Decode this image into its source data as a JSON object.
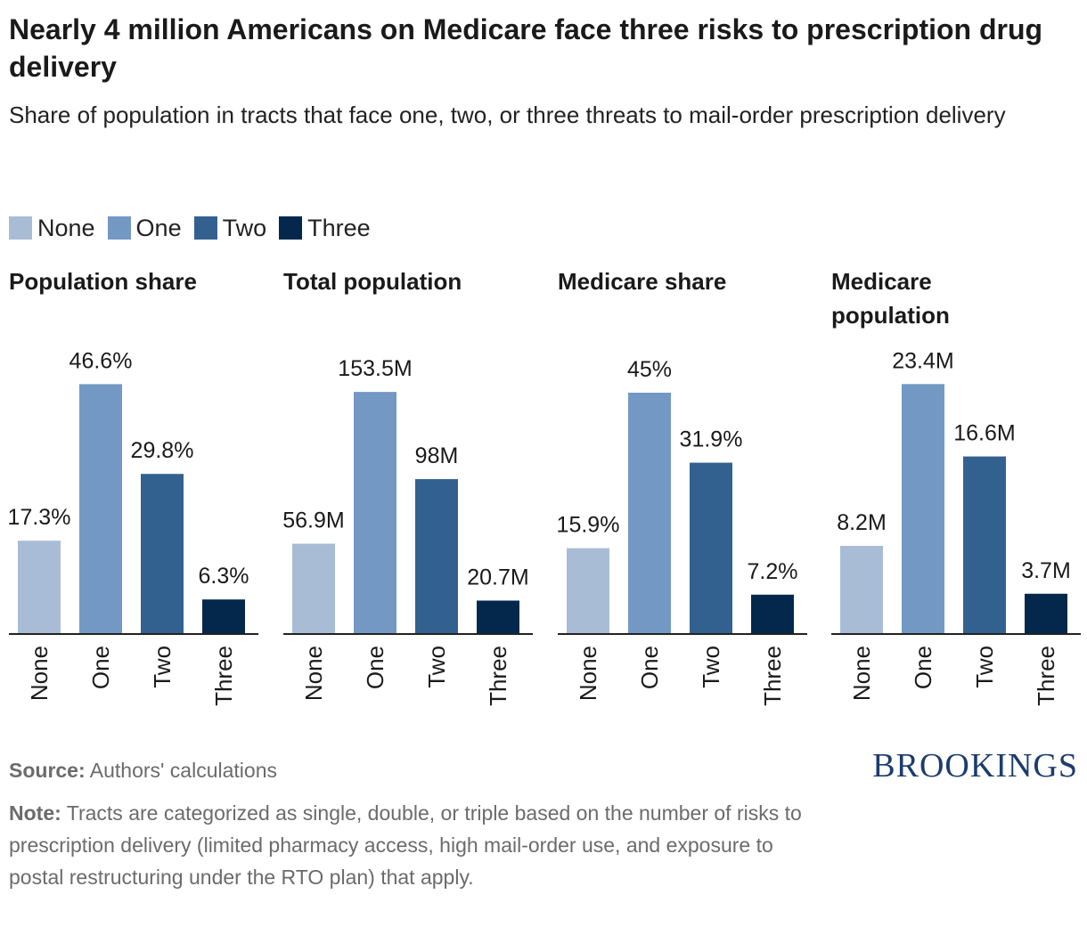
{
  "header": {
    "title": "Nearly 4 million Americans on Medicare face three risks to prescription drug delivery",
    "subtitle": "Share of population in tracts that face one, two, or three threats to mail-order prescription delivery"
  },
  "legend": [
    {
      "label": "None",
      "color": "#a9bcd6"
    },
    {
      "label": "One",
      "color": "#7398c4"
    },
    {
      "label": "Two",
      "color": "#33618f"
    },
    {
      "label": "Three",
      "color": "#03284c"
    }
  ],
  "chart_data": [
    {
      "type": "bar",
      "title": "Population share",
      "categories": [
        "None",
        "One",
        "Two",
        "Three"
      ],
      "values": [
        17.3,
        46.6,
        29.8,
        6.3
      ],
      "value_labels": [
        "17.3%",
        "46.6%",
        "29.8%",
        "6.3%"
      ],
      "ylim": [
        0,
        50
      ]
    },
    {
      "type": "bar",
      "title": "Total population",
      "categories": [
        "None",
        "One",
        "Two",
        "Three"
      ],
      "values": [
        56.9,
        153.5,
        98,
        20.7
      ],
      "value_labels": [
        "56.9M",
        "153.5M",
        "98M",
        "20.7M"
      ],
      "ylim": [
        0,
        170
      ]
    },
    {
      "type": "bar",
      "title": "Medicare share",
      "categories": [
        "None",
        "One",
        "Two",
        "Three"
      ],
      "values": [
        15.9,
        45,
        31.9,
        7.2
      ],
      "value_labels": [
        "15.9%",
        "45%",
        "31.9%",
        "7.2%"
      ],
      "ylim": [
        0,
        50
      ]
    },
    {
      "type": "bar",
      "title": "Medicare population",
      "categories": [
        "None",
        "One",
        "Two",
        "Three"
      ],
      "values": [
        8.2,
        23.4,
        16.6,
        3.7
      ],
      "value_labels": [
        "8.2M",
        "23.4M",
        "16.6M",
        "3.7M"
      ],
      "ylim": [
        0,
        25.1
      ]
    }
  ],
  "footer": {
    "source_label": "Source:",
    "source_text": "Authors' calculations",
    "note_label": "Note:",
    "note_text": "Tracts are categorized as single, double, or triple based on the number of risks to prescription delivery (limited pharmacy access, high mail-order use, and exposure to postal restructuring under the RTO plan) that apply.",
    "brand": "BROOKINGS"
  }
}
